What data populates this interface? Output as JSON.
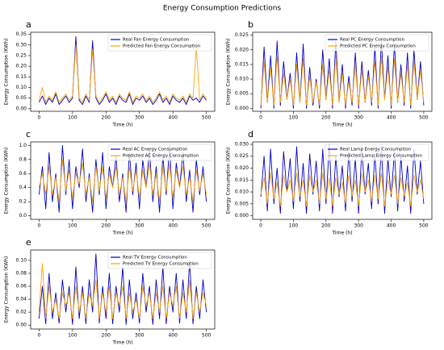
{
  "title": "Energy Consumption Predictions",
  "chart_data": [
    {
      "type": "line",
      "panel": "a",
      "xlabel": "Time (h)",
      "ylabel": "Energy Consumption (KWh)",
      "legend": "upper right",
      "x": [
        0,
        10,
        20,
        30,
        40,
        50,
        60,
        70,
        80,
        90,
        100,
        110,
        120,
        130,
        140,
        150,
        160,
        170,
        180,
        190,
        200,
        210,
        220,
        230,
        240,
        250,
        260,
        270,
        280,
        290,
        300,
        310,
        320,
        330,
        340,
        350,
        360,
        370,
        380,
        390,
        400,
        410,
        420,
        430,
        440,
        450,
        460,
        470,
        480,
        490,
        500
      ],
      "xlim": [
        -25,
        525
      ],
      "xticks": [
        0,
        100,
        200,
        300,
        400,
        500
      ],
      "ylim": [
        -0.012,
        0.36
      ],
      "yticks": [
        {
          "value": 0,
          "label": "0.00"
        },
        0.05,
        {
          "value": 0.1,
          "label": "0.10"
        },
        0.15,
        {
          "value": 0.2,
          "label": "0.20"
        },
        0.25,
        {
          "value": 0.3,
          "label": "0.30"
        },
        0.35
      ],
      "series": [
        {
          "name": "Real Fan Energy Consumption",
          "color": "#0000cc",
          "values": [
            0.03,
            0.06,
            0.02,
            0.05,
            0.03,
            0.07,
            0.02,
            0.04,
            0.06,
            0.03,
            0.05,
            0.34,
            0.04,
            0.02,
            0.06,
            0.03,
            0.32,
            0.05,
            0.02,
            0.04,
            0.07,
            0.03,
            0.05,
            0.02,
            0.06,
            0.04,
            0.03,
            0.07,
            0.02,
            0.05,
            0.04,
            0.06,
            0.03,
            0.05,
            0.02,
            0.04,
            0.07,
            0.03,
            0.05,
            0.02,
            0.06,
            0.04,
            0.03,
            0.05,
            0.02,
            0.06,
            0.04,
            0.05,
            0.03,
            0.06,
            0.04
          ]
        },
        {
          "name": "Predicted Fan Energy Consumption",
          "color": "#ffa500",
          "values": [
            0.04,
            0.1,
            0.03,
            0.06,
            0.04,
            0.08,
            0.03,
            0.05,
            0.07,
            0.04,
            0.06,
            0.3,
            0.05,
            0.03,
            0.07,
            0.04,
            0.28,
            0.06,
            0.03,
            0.05,
            0.08,
            0.04,
            0.06,
            0.03,
            0.07,
            0.05,
            0.04,
            0.08,
            0.03,
            0.06,
            0.05,
            0.07,
            0.04,
            0.06,
            0.03,
            0.05,
            0.08,
            0.04,
            0.06,
            0.03,
            0.07,
            0.05,
            0.04,
            0.06,
            0.03,
            0.07,
            0.05,
            0.29,
            0.04,
            0.07,
            0.05
          ]
        }
      ]
    },
    {
      "type": "line",
      "panel": "b",
      "xlabel": "Time (h)",
      "ylabel": "Energy Consumption (KWh)",
      "legend": "upper right",
      "x": [
        0,
        10,
        20,
        30,
        40,
        50,
        60,
        70,
        80,
        90,
        100,
        110,
        120,
        130,
        140,
        150,
        160,
        170,
        180,
        190,
        200,
        210,
        220,
        230,
        240,
        250,
        260,
        270,
        280,
        290,
        300,
        310,
        320,
        330,
        340,
        350,
        360,
        370,
        380,
        390,
        400,
        410,
        420,
        430,
        440,
        450,
        460,
        470,
        480,
        490,
        500
      ],
      "xlim": [
        -25,
        525
      ],
      "xticks": [
        0,
        100,
        200,
        300,
        400,
        500
      ],
      "ylim": [
        -0.001,
        0.026
      ],
      "yticks": [
        {
          "value": 0,
          "label": "0.000"
        },
        0.005,
        {
          "value": 0.01,
          "label": "0.010"
        },
        0.015,
        {
          "value": 0.02,
          "label": "0.020"
        },
        0.025
      ],
      "series": [
        {
          "name": "Real PC Energy Consumption",
          "color": "#0000cc",
          "values": [
            0,
            0.021,
            0.002,
            0.018,
            0,
            0.023,
            0.001,
            0.016,
            0.003,
            0.012,
            0,
            0.019,
            0.002,
            0.022,
            0,
            0.014,
            0.001,
            0.01,
            0,
            0.02,
            0.003,
            0.017,
            0,
            0.023,
            0.002,
            0.015,
            0,
            0.011,
            0.001,
            0.019,
            0,
            0.016,
            0.002,
            0.013,
            0.001,
            0.021,
            0,
            0.023,
            0.003,
            0.018,
            0,
            0.022,
            0.002,
            0.015,
            0.001,
            0.019,
            0,
            0.02,
            0.003,
            0.016,
            0.001
          ]
        },
        {
          "name": "Predicted PC Energy Consumption",
          "color": "#ffa500",
          "values": [
            0.001,
            0.016,
            0.002,
            0.014,
            0.001,
            0.018,
            0.002,
            0.012,
            0.003,
            0.01,
            0.001,
            0.015,
            0.002,
            0.017,
            0.001,
            0.011,
            0.002,
            0.009,
            0.001,
            0.015,
            0.003,
            0.013,
            0.001,
            0.018,
            0.002,
            0.012,
            0.001,
            0.009,
            0.002,
            0.015,
            0.001,
            0.013,
            0.002,
            0.011,
            0.002,
            0.016,
            0.001,
            0.018,
            0.003,
            0.014,
            0.001,
            0.017,
            0.002,
            0.012,
            0.002,
            0.015,
            0.001,
            0.016,
            0.003,
            0.013,
            0.002
          ]
        }
      ]
    },
    {
      "type": "line",
      "panel": "c",
      "xlabel": "Time (h)",
      "ylabel": "Energy Consumption (KWh)",
      "legend": "upper right",
      "x": [
        0,
        10,
        20,
        30,
        40,
        50,
        60,
        70,
        80,
        90,
        100,
        110,
        120,
        130,
        140,
        150,
        160,
        170,
        180,
        190,
        200,
        210,
        220,
        230,
        240,
        250,
        260,
        270,
        280,
        290,
        300,
        310,
        320,
        330,
        340,
        350,
        360,
        370,
        380,
        390,
        400,
        410,
        420,
        430,
        440,
        450,
        460,
        470,
        480,
        490,
        500
      ],
      "xlim": [
        -25,
        525
      ],
      "xticks": [
        0,
        100,
        200,
        300,
        400,
        500
      ],
      "ylim": [
        -0.05,
        1.05
      ],
      "yticks": [
        {
          "value": 0,
          "label": "0.0"
        },
        0.2,
        0.4,
        0.6,
        0.8,
        {
          "value": 1,
          "label": "1.0"
        }
      ],
      "series": [
        {
          "name": "Real AC Energy Consumption",
          "color": "#0000cc",
          "values": [
            0.3,
            0.7,
            0.1,
            0.9,
            0.2,
            0.6,
            0.05,
            1.0,
            0.3,
            0.8,
            0.1,
            0.7,
            0.4,
            0.95,
            0.2,
            0.6,
            0.05,
            0.8,
            0.3,
            0.9,
            0.1,
            0.7,
            0.4,
            0.85,
            0.2,
            0.6,
            0.05,
            0.9,
            0.3,
            0.75,
            0.1,
            0.8,
            0.4,
            0.95,
            0.2,
            0.7,
            0.05,
            0.85,
            0.3,
            1.0,
            0.1,
            0.75,
            0.4,
            0.9,
            0.2,
            0.65,
            0.05,
            0.8,
            0.3,
            0.7,
            0.2
          ]
        },
        {
          "name": "Predicted AC Energy Consumption",
          "color": "#ffa500",
          "values": [
            0.4,
            0.6,
            0.3,
            0.7,
            0.3,
            0.55,
            0.2,
            0.8,
            0.35,
            0.65,
            0.25,
            0.6,
            0.45,
            0.75,
            0.3,
            0.55,
            0.2,
            0.7,
            0.35,
            0.7,
            0.25,
            0.6,
            0.4,
            0.7,
            0.3,
            0.55,
            0.2,
            0.7,
            0.35,
            0.65,
            0.25,
            0.65,
            0.4,
            0.75,
            0.3,
            0.6,
            0.2,
            0.7,
            0.35,
            0.75,
            0.25,
            0.65,
            0.4,
            0.7,
            0.3,
            0.55,
            0.2,
            0.65,
            0.35,
            0.6,
            0.3
          ]
        }
      ]
    },
    {
      "type": "line",
      "panel": "d",
      "xlabel": "Time (h)",
      "ylabel": "Energy Consumption (KWh)",
      "legend": "upper right",
      "x": [
        0,
        10,
        20,
        30,
        40,
        50,
        60,
        70,
        80,
        90,
        100,
        110,
        120,
        130,
        140,
        150,
        160,
        170,
        180,
        190,
        200,
        210,
        220,
        230,
        240,
        250,
        260,
        270,
        280,
        290,
        300,
        310,
        320,
        330,
        340,
        350,
        360,
        370,
        380,
        390,
        400,
        410,
        420,
        430,
        440,
        450,
        460,
        470,
        480,
        490,
        500
      ],
      "xlim": [
        -25,
        525
      ],
      "xticks": [
        0,
        100,
        200,
        300,
        400,
        500
      ],
      "ylim": [
        -0.0015,
        0.031
      ],
      "yticks": [
        {
          "value": 0,
          "label": "0.000"
        },
        0.005,
        {
          "value": 0.01,
          "label": "0.010"
        },
        0.015,
        {
          "value": 0.02,
          "label": "0.020"
        },
        0.025,
        {
          "value": 0.03,
          "label": "0.030"
        }
      ],
      "series": [
        {
          "name": "Real Lamp Energy Consumption",
          "color": "#0000cc",
          "values": [
            0.008,
            0.025,
            0.002,
            0.028,
            0.005,
            0.02,
            0.001,
            0.027,
            0.01,
            0.024,
            0.003,
            0.029,
            0.006,
            0.022,
            0.001,
            0.026,
            0.009,
            0.023,
            0.002,
            0.028,
            0.005,
            0.03,
            0.001,
            0.025,
            0.008,
            0.021,
            0.002,
            0.027,
            0.006,
            0.024,
            0.001,
            0.028,
            0.009,
            0.022,
            0.003,
            0.026,
            0.005,
            0.029,
            0.001,
            0.024,
            0.008,
            0.027,
            0.002,
            0.025,
            0.006,
            0.021,
            0.001,
            0.028,
            0.009,
            0.023,
            0.005
          ]
        },
        {
          "name": "Predicted Lamp Energy Consumption",
          "color": "#ffa500",
          "values": [
            0.009,
            0.016,
            0.005,
            0.018,
            0.007,
            0.014,
            0.004,
            0.017,
            0.01,
            0.015,
            0.006,
            0.018,
            0.008,
            0.015,
            0.004,
            0.017,
            0.01,
            0.015,
            0.005,
            0.018,
            0.007,
            0.016,
            0.004,
            0.016,
            0.009,
            0.014,
            0.005,
            0.017,
            0.008,
            0.015,
            0.004,
            0.018,
            0.01,
            0.015,
            0.006,
            0.017,
            0.007,
            0.018,
            0.004,
            0.015,
            0.009,
            0.017,
            0.005,
            0.016,
            0.008,
            0.014,
            0.004,
            0.017,
            0.01,
            0.015,
            0.007
          ]
        }
      ]
    },
    {
      "type": "line",
      "panel": "e",
      "xlabel": "Time (h)",
      "ylabel": "Energy Consumption (KWh)",
      "legend": "upper right",
      "x": [
        0,
        10,
        20,
        30,
        40,
        50,
        60,
        70,
        80,
        90,
        100,
        110,
        120,
        130,
        140,
        150,
        160,
        170,
        180,
        190,
        200,
        210,
        220,
        230,
        240,
        250,
        260,
        270,
        280,
        290,
        300,
        310,
        320,
        330,
        340,
        350,
        360,
        370,
        380,
        390,
        400,
        410,
        420,
        430,
        440,
        450,
        460,
        470,
        480,
        490,
        500
      ],
      "xlim": [
        -25,
        525
      ],
      "xticks": [
        0,
        100,
        200,
        300,
        400,
        500
      ],
      "ylim": [
        -0.006,
        0.116
      ],
      "yticks": [
        {
          "value": 0,
          "label": "0.00"
        },
        0.02,
        0.04,
        0.06,
        0.08,
        {
          "value": 0.1,
          "label": "0.10"
        }
      ],
      "series": [
        {
          "name": "Real TV Energy Consumption",
          "color": "#0000cc",
          "values": [
            0.01,
            0.06,
            0.002,
            0.08,
            0.01,
            0.05,
            0.003,
            0.07,
            0.02,
            0.06,
            0.001,
            0.09,
            0.01,
            0.06,
            0.002,
            0.07,
            0.02,
            0.11,
            0.003,
            0.06,
            0.01,
            0.08,
            0.002,
            0.06,
            0.02,
            0.09,
            0.001,
            0.07,
            0.01,
            0.05,
            0.003,
            0.08,
            0.02,
            0.06,
            0.001,
            0.07,
            0.01,
            0.09,
            0.002,
            0.06,
            0.02,
            0.08,
            0.003,
            0.07,
            0.01,
            0.1,
            0.002,
            0.06,
            0.01,
            0.07,
            0.02
          ]
        },
        {
          "name": "Predicted TV Energy Consumption",
          "color": "#ffa500",
          "values": [
            0.02,
            0.095,
            0.01,
            0.06,
            0.02,
            0.04,
            0.01,
            0.05,
            0.03,
            0.05,
            0.01,
            0.06,
            0.02,
            0.05,
            0.01,
            0.05,
            0.03,
            0.07,
            0.01,
            0.05,
            0.02,
            0.06,
            0.01,
            0.05,
            0.03,
            0.06,
            0.01,
            0.05,
            0.02,
            0.04,
            0.01,
            0.06,
            0.03,
            0.05,
            0.01,
            0.05,
            0.02,
            0.06,
            0.01,
            0.05,
            0.03,
            0.06,
            0.01,
            0.05,
            0.02,
            0.07,
            0.01,
            0.05,
            0.02,
            0.05,
            0.03
          ]
        }
      ]
    }
  ]
}
